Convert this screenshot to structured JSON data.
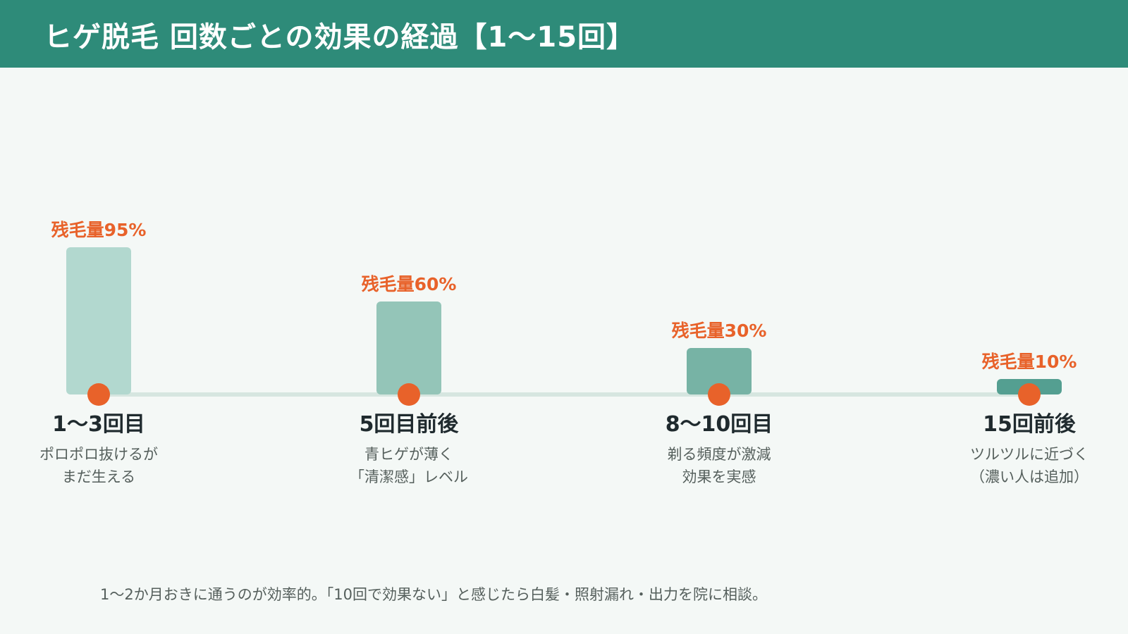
{
  "page": {
    "title": "ヒゲ脱毛 回数ごとの効果の経過【1〜15回】",
    "footnote": "1〜2か月おきに通うのが効率的。「10回で効果ない」と感じたら白髪・照射漏れ・出力を院に相談。"
  },
  "colors": {
    "header_bg": "#2e8b79",
    "background": "#f4f8f6",
    "accent_orange": "#e8622a",
    "baseline": "#d6e6e0",
    "bar_colors": [
      "#b2d8cf",
      "#94c5b8",
      "#77b3a5",
      "#549f91"
    ],
    "milestone_text": "#1f2a2e",
    "desc_text": "#555f5c"
  },
  "chart_data": {
    "type": "bar",
    "title": "",
    "xlabel": "",
    "ylabel": "",
    "ylim": [
      0,
      100
    ],
    "grid": false,
    "categories": [
      "1〜3回目",
      "5回目前後",
      "8〜10回目",
      "15回前後"
    ],
    "values": [
      95,
      60,
      30,
      10
    ],
    "value_labels": [
      "残毛量95%",
      "残毛量60%",
      "残毛量30%",
      "残毛量10%"
    ],
    "descriptions": [
      [
        "ポロポロ抜けるが",
        "まだ生える"
      ],
      [
        "青ヒゲが薄く",
        "「清潔感」レベル"
      ],
      [
        "剃る頻度が激減",
        "効果を実感"
      ],
      [
        "ツルツルに近づく",
        "（濃い人は追加）"
      ]
    ]
  }
}
